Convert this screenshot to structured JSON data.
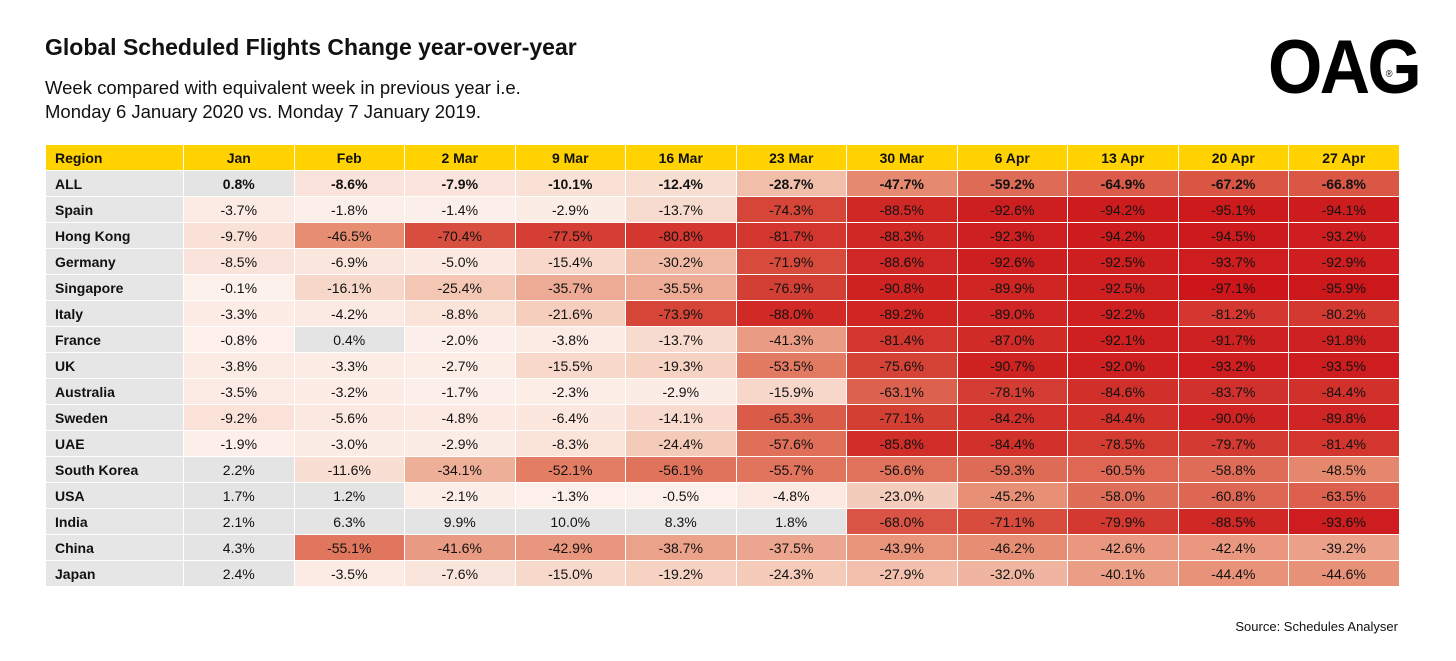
{
  "header": {
    "title": "Global Scheduled Flights Change year-over-year",
    "subtitle_line1": "Week compared with equivalent week in previous year i.e.",
    "subtitle_line2": "Monday 6 January 2020 vs. Monday 7 January 2019.",
    "logo_text": "OAG",
    "logo_mark": "®"
  },
  "source": "Source: Schedules Analyser",
  "colors": {
    "header_yellow": "#ffd200",
    "region_gray": "#e6e6e6",
    "positive_gray": "#e4e4e4",
    "deep_red": "#d1191a"
  },
  "chart_data": {
    "type": "table",
    "row_header": "Region",
    "columns": [
      "Jan",
      "Feb",
      "2 Mar",
      "9 Mar",
      "16 Mar",
      "23 Mar",
      "30 Mar",
      "6 Apr",
      "13 Apr",
      "20 Apr",
      "27 Apr"
    ],
    "rows": [
      {
        "region": "ALL",
        "values": [
          "0.8%",
          "-8.6%",
          "-7.9%",
          "-10.1%",
          "-12.4%",
          "-28.7%",
          "-47.7%",
          "-59.2%",
          "-64.9%",
          "-67.2%",
          "-66.8%"
        ]
      },
      {
        "region": "Spain",
        "values": [
          "-3.7%",
          "-1.8%",
          "-1.4%",
          "-2.9%",
          "-13.7%",
          "-74.3%",
          "-88.5%",
          "-92.6%",
          "-94.2%",
          "-95.1%",
          "-94.1%"
        ]
      },
      {
        "region": "Hong Kong",
        "values": [
          "-9.7%",
          "-46.5%",
          "-70.4%",
          "-77.5%",
          "-80.8%",
          "-81.7%",
          "-88.3%",
          "-92.3%",
          "-94.2%",
          "-94.5%",
          "-93.2%"
        ]
      },
      {
        "region": "Germany",
        "values": [
          "-8.5%",
          "-6.9%",
          "-5.0%",
          "-15.4%",
          "-30.2%",
          "-71.9%",
          "-88.6%",
          "-92.6%",
          "-92.5%",
          "-93.7%",
          "-92.9%"
        ]
      },
      {
        "region": "Singapore",
        "values": [
          "-0.1%",
          "-16.1%",
          "-25.4%",
          "-35.7%",
          "-35.5%",
          "-76.9%",
          "-90.8%",
          "-89.9%",
          "-92.5%",
          "-97.1%",
          "-95.9%"
        ]
      },
      {
        "region": "Italy",
        "values": [
          "-3.3%",
          "-4.2%",
          "-8.8%",
          "-21.6%",
          "-73.9%",
          "-88.0%",
          "-89.2%",
          "-89.0%",
          "-92.2%",
          "-81.2%",
          "-80.2%"
        ]
      },
      {
        "region": "France",
        "values": [
          "-0.8%",
          "0.4%",
          "-2.0%",
          "-3.8%",
          "-13.7%",
          "-41.3%",
          "-81.4%",
          "-87.0%",
          "-92.1%",
          "-91.7%",
          "-91.8%"
        ]
      },
      {
        "region": "UK",
        "values": [
          "-3.8%",
          "-3.3%",
          "-2.7%",
          "-15.5%",
          "-19.3%",
          "-53.5%",
          "-75.6%",
          "-90.7%",
          "-92.0%",
          "-93.2%",
          "-93.5%"
        ]
      },
      {
        "region": "Australia",
        "values": [
          "-3.5%",
          "-3.2%",
          "-1.7%",
          "-2.3%",
          "-2.9%",
          "-15.9%",
          "-63.1%",
          "-78.1%",
          "-84.6%",
          "-83.7%",
          "-84.4%"
        ]
      },
      {
        "region": "Sweden",
        "values": [
          "-9.2%",
          "-5.6%",
          "-4.8%",
          "-6.4%",
          "-14.1%",
          "-65.3%",
          "-77.1%",
          "-84.2%",
          "-84.4%",
          "-90.0%",
          "-89.8%"
        ]
      },
      {
        "region": "UAE",
        "values": [
          "-1.9%",
          "-3.0%",
          "-2.9%",
          "-8.3%",
          "-24.4%",
          "-57.6%",
          "-85.8%",
          "-84.4%",
          "-78.5%",
          "-79.7%",
          "-81.4%"
        ]
      },
      {
        "region": "South Korea",
        "values": [
          "2.2%",
          "-11.6%",
          "-34.1%",
          "-52.1%",
          "-56.1%",
          "-55.7%",
          "-56.6%",
          "-59.3%",
          "-60.5%",
          "-58.8%",
          "-48.5%"
        ]
      },
      {
        "region": "USA",
        "values": [
          "1.7%",
          "1.2%",
          "-2.1%",
          "-1.3%",
          "-0.5%",
          "-4.8%",
          "-23.0%",
          "-45.2%",
          "-58.0%",
          "-60.8%",
          "-63.5%"
        ]
      },
      {
        "region": "India",
        "values": [
          "2.1%",
          "6.3%",
          "9.9%",
          "10.0%",
          "8.3%",
          "1.8%",
          "-68.0%",
          "-71.1%",
          "-79.9%",
          "-88.5%",
          "-93.6%"
        ]
      },
      {
        "region": "China",
        "values": [
          "4.3%",
          "-55.1%",
          "-41.6%",
          "-42.9%",
          "-38.7%",
          "-37.5%",
          "-43.9%",
          "-46.2%",
          "-42.6%",
          "-42.4%",
          "-39.2%"
        ]
      },
      {
        "region": "Japan",
        "values": [
          "2.4%",
          "-3.5%",
          "-7.6%",
          "-15.0%",
          "-19.2%",
          "-24.3%",
          "-27.9%",
          "-32.0%",
          "-40.1%",
          "-44.4%",
          "-44.6%"
        ]
      }
    ]
  }
}
